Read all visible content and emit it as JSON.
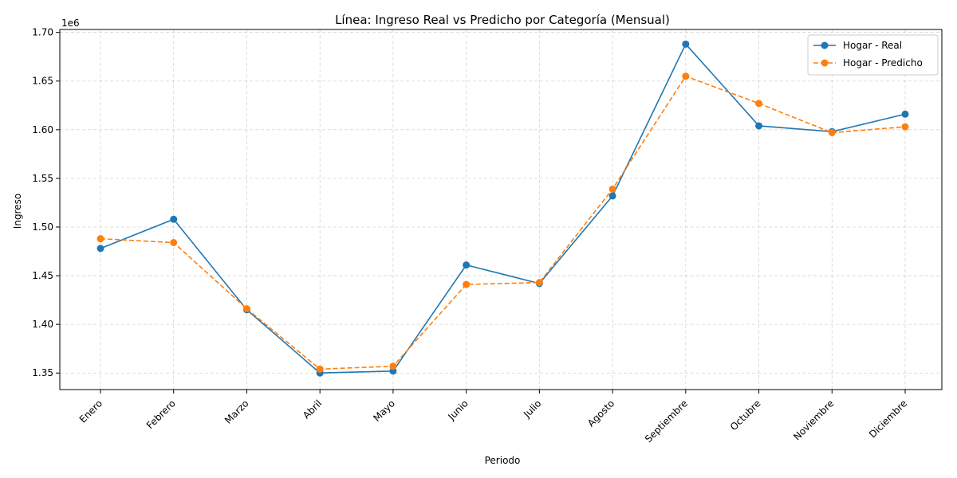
{
  "chart_data": {
    "type": "line",
    "title": "Línea: Ingreso Real vs Predicho por Categoría (Mensual)",
    "xlabel": "Periodo",
    "ylabel": "Ingreso",
    "y_offset_label": "1e6",
    "categories": [
      "Enero",
      "Febrero",
      "Marzo",
      "Abril",
      "Mayo",
      "Junio",
      "Julio",
      "Agosto",
      "Septiembre",
      "Octubre",
      "Noviembre",
      "Diciembre"
    ],
    "series": [
      {
        "name": "Hogar - Real",
        "color": "#1f77b4",
        "style": "solid",
        "values": [
          1478000,
          1508000,
          1415000,
          1350000,
          1352000,
          1461000,
          1442000,
          1532000,
          1688000,
          1604000,
          1598000,
          1616000
        ]
      },
      {
        "name": "Hogar - Predicho",
        "color": "#ff7f0e",
        "style": "dashed",
        "values": [
          1488000,
          1484000,
          1416000,
          1354000,
          1357000,
          1441000,
          1443000,
          1539000,
          1655000,
          1627000,
          1597000,
          1603000
        ]
      }
    ],
    "y_ticks": [
      1350000,
      1400000,
      1450000,
      1500000,
      1550000,
      1600000,
      1650000,
      1700000
    ],
    "y_tick_labels": [
      "1.35",
      "1.40",
      "1.45",
      "1.50",
      "1.55",
      "1.60",
      "1.65",
      "1.70"
    ],
    "ylim": [
      1333000,
      1703000
    ],
    "grid": true,
    "legend_position": "top-right"
  }
}
